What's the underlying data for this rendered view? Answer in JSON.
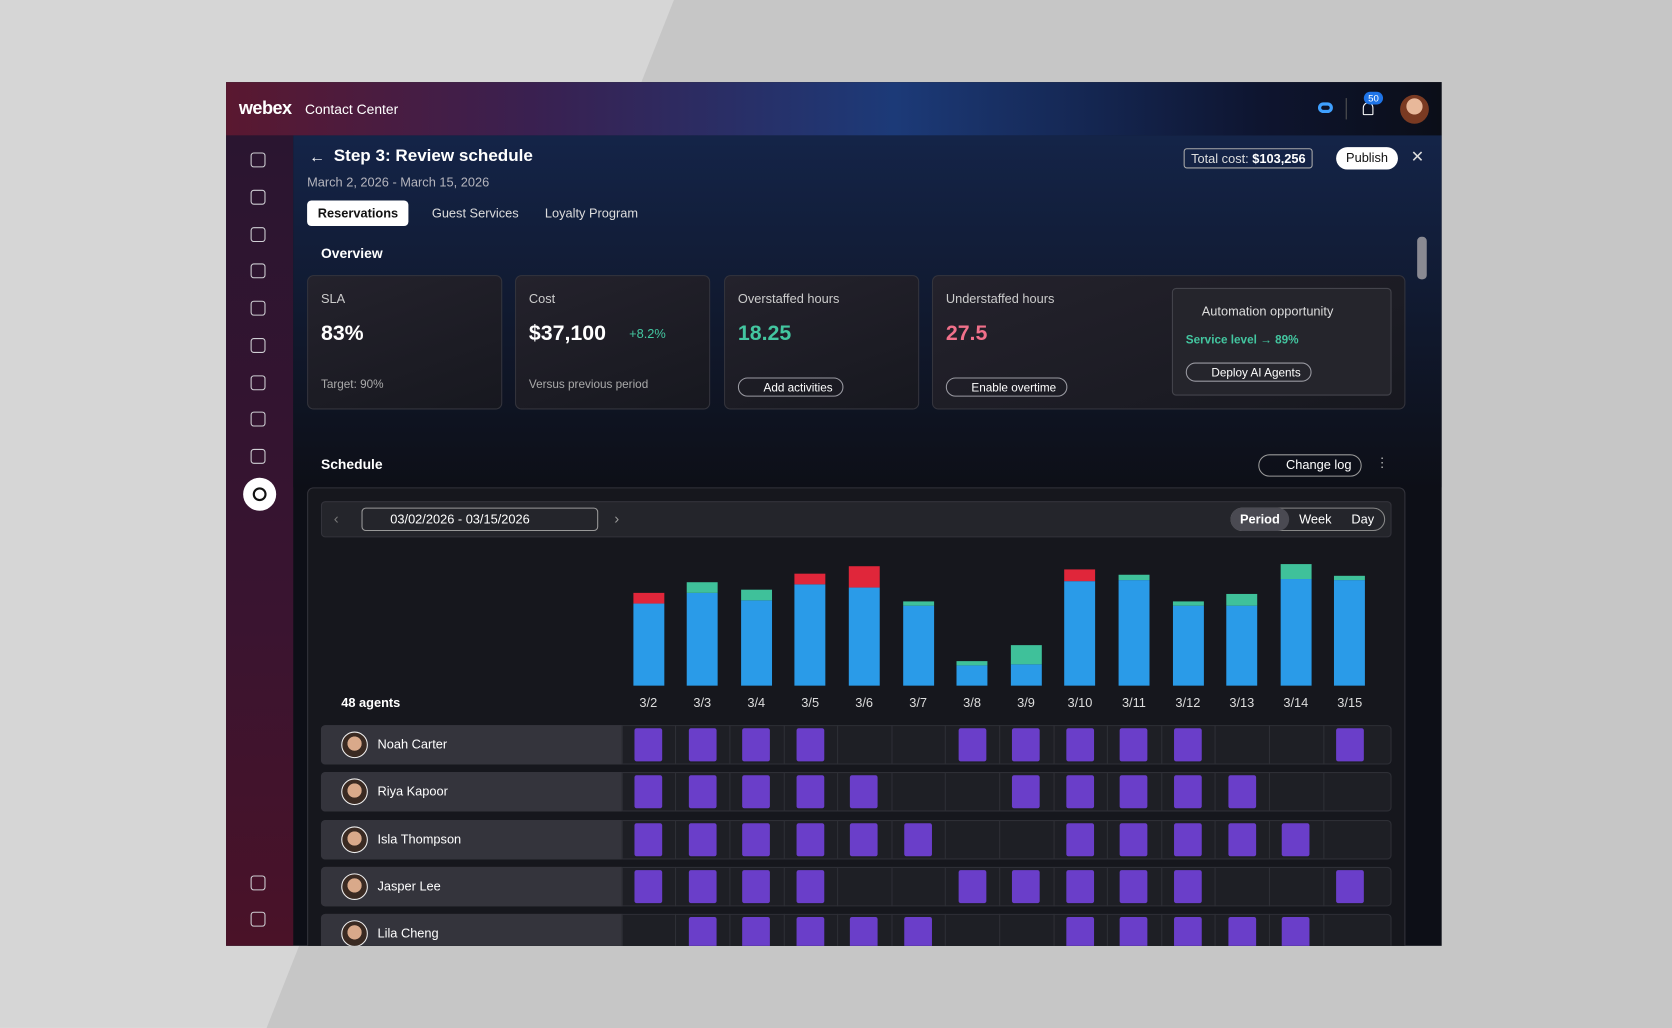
{
  "header": {
    "brand": "webex",
    "product": "Contact Center",
    "notification_count": 50
  },
  "page": {
    "title": "Step 3: Review schedule",
    "date_range": "March 2, 2026 - March 15, 2026",
    "total_cost_label": "Total cost:",
    "total_cost": "$103,256",
    "publish": "Publish"
  },
  "tabs": [
    "Reservations",
    "Guest Services",
    "Loyalty Program"
  ],
  "overview": {
    "title": "Overview",
    "cards": [
      {
        "label": "SLA",
        "value": "83%",
        "footer": "Target: 90%"
      },
      {
        "label": "Cost",
        "value": "$37,100",
        "change": "+8.2%",
        "footer": "Versus previous period"
      },
      {
        "label": "Overstaffed hours",
        "value": "18.25",
        "action": "Add activities"
      },
      {
        "label": "Understaffed hours",
        "value": "27.5",
        "action": "Enable overtime"
      }
    ],
    "automation": {
      "title": "Automation opportunity",
      "detail": "Service level → 89%",
      "action": "Deploy AI Agents"
    }
  },
  "schedule": {
    "title": "Schedule",
    "change_log": "Change log",
    "date_picker": "03/02/2026 - 03/15/2026",
    "views": [
      "Period",
      "Week",
      "Day"
    ],
    "agents_label": "48 agents",
    "agents": [
      {
        "name": "Noah Carter",
        "shifts": [
          1,
          1,
          1,
          1,
          0,
          0,
          1,
          1,
          1,
          1,
          1,
          0,
          0,
          1
        ]
      },
      {
        "name": "Riya Kapoor",
        "shifts": [
          1,
          1,
          1,
          1,
          1,
          0,
          0,
          1,
          1,
          1,
          1,
          1,
          0,
          0
        ]
      },
      {
        "name": "Isla Thompson",
        "shifts": [
          1,
          1,
          1,
          1,
          1,
          1,
          0,
          0,
          1,
          1,
          1,
          1,
          1,
          0
        ]
      },
      {
        "name": "Jasper Lee",
        "shifts": [
          1,
          1,
          1,
          1,
          0,
          0,
          1,
          1,
          1,
          1,
          1,
          0,
          0,
          1
        ]
      },
      {
        "name": "Lila Cheng",
        "shifts": [
          0,
          1,
          1,
          1,
          1,
          1,
          0,
          0,
          1,
          1,
          1,
          1,
          1,
          0
        ]
      }
    ]
  },
  "chart_data": {
    "type": "bar",
    "stacked": true,
    "categories": [
      "3/2",
      "3/3",
      "3/4",
      "3/5",
      "3/6",
      "3/7",
      "3/8",
      "3/9",
      "3/10",
      "3/11",
      "3/12",
      "3/13",
      "3/14",
      "3/15"
    ],
    "ylim": [
      0,
      120
    ],
    "series": [
      {
        "color": "#2a9be8",
        "values": [
          77,
          87,
          80,
          95,
          92,
          75,
          19,
          20,
          98,
          99,
          75,
          75,
          100,
          99
        ]
      },
      {
        "color": "#3fc19a",
        "values": [
          0,
          10,
          10,
          0,
          0,
          4,
          4,
          18,
          0,
          5,
          4,
          11,
          14,
          4
        ]
      },
      {
        "color": "#e0263a",
        "values": [
          10,
          0,
          0,
          10,
          20,
          0,
          0,
          0,
          11,
          0,
          0,
          0,
          0,
          0
        ]
      }
    ]
  }
}
